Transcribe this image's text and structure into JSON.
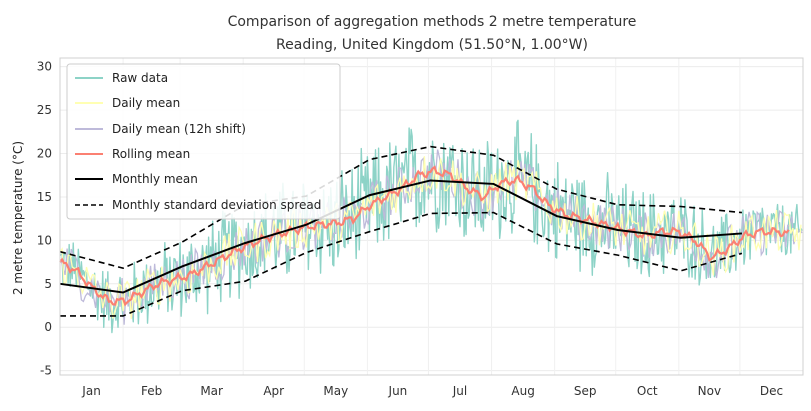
{
  "chart_data": {
    "type": "line",
    "title": "Comparison of aggregation methods 2 metre temperature",
    "subtitle": "Reading, United Kingdom (51.50°N, 1.00°W)",
    "xlabel": "",
    "ylabel": "2 metre temperature (°C)",
    "ylim": [
      -5.5,
      31
    ],
    "yticks": [
      -5,
      0,
      5,
      10,
      15,
      20,
      25,
      30
    ],
    "months": [
      "Jan",
      "Feb",
      "Mar",
      "Apr",
      "May",
      "Jun",
      "Jul",
      "Aug",
      "Sep",
      "Oct",
      "Nov",
      "Dec"
    ],
    "grid": true,
    "legend_position": "top-left",
    "colors": {
      "raw": "#8dd3c7",
      "daily": "#ffffb3",
      "daily_shift": "#bebada",
      "rolling": "#fb8072",
      "monthly": "#000000",
      "spread": "#000000"
    },
    "series": [
      {
        "name": "Raw data",
        "style": "line"
      },
      {
        "name": "Daily mean",
        "style": "line"
      },
      {
        "name": "Daily mean (12h shift)",
        "style": "line"
      },
      {
        "name": "Rolling mean",
        "style": "line"
      },
      {
        "name": "Monthly mean",
        "style": "line"
      },
      {
        "name": "Monthly standard deviation spread",
        "style": "dashed"
      }
    ],
    "rolling_mean": {
      "day": [
        0,
        8,
        16,
        24,
        32,
        40,
        48,
        56,
        64,
        72,
        80,
        88,
        96,
        104,
        112,
        120,
        128,
        136,
        144,
        152,
        160,
        168,
        176,
        184,
        192,
        200,
        208,
        216,
        224,
        232,
        240,
        248,
        256,
        264,
        272,
        280,
        288,
        296,
        304,
        312,
        320,
        328,
        336,
        344,
        352,
        358
      ],
      "value": [
        7.5,
        6.5,
        4.5,
        3.0,
        3.0,
        4.0,
        5.0,
        5.5,
        6.0,
        7.0,
        8.0,
        9.0,
        9.8,
        10.5,
        11.0,
        11.5,
        11.8,
        12.0,
        12.5,
        14.0,
        15.0,
        16.0,
        17.5,
        18.0,
        17.5,
        16.0,
        15.0,
        16.5,
        17.0,
        16.0,
        14.0,
        13.0,
        12.5,
        12.0,
        11.5,
        11.0,
        10.5,
        11.0,
        11.0,
        10.0,
        8.0,
        9.0,
        10.5,
        11.0,
        11.0,
        10.8
      ]
    },
    "monthly_mean": {
      "day": [
        0,
        31,
        60,
        91,
        121,
        152,
        182,
        213,
        244,
        274,
        305,
        335
      ],
      "value": [
        5.0,
        4.0,
        7.0,
        9.7,
        11.8,
        15.2,
        16.9,
        16.5,
        12.8,
        11.2,
        10.3,
        10.8
      ]
    },
    "std_upper": {
      "day": [
        0,
        31,
        60,
        91,
        121,
        152,
        182,
        213,
        244,
        274,
        305,
        335
      ],
      "value": [
        8.7,
        6.8,
        9.8,
        14.1,
        15.1,
        19.3,
        20.8,
        19.8,
        15.9,
        14.1,
        13.9,
        13.2
      ]
    },
    "std_lower": {
      "day": [
        0,
        31,
        60,
        91,
        121,
        152,
        182,
        213,
        244,
        274,
        305,
        335
      ],
      "value": [
        1.3,
        1.3,
        4.2,
        5.3,
        8.6,
        11.0,
        13.1,
        13.2,
        9.6,
        8.3,
        6.5,
        8.5
      ]
    }
  }
}
